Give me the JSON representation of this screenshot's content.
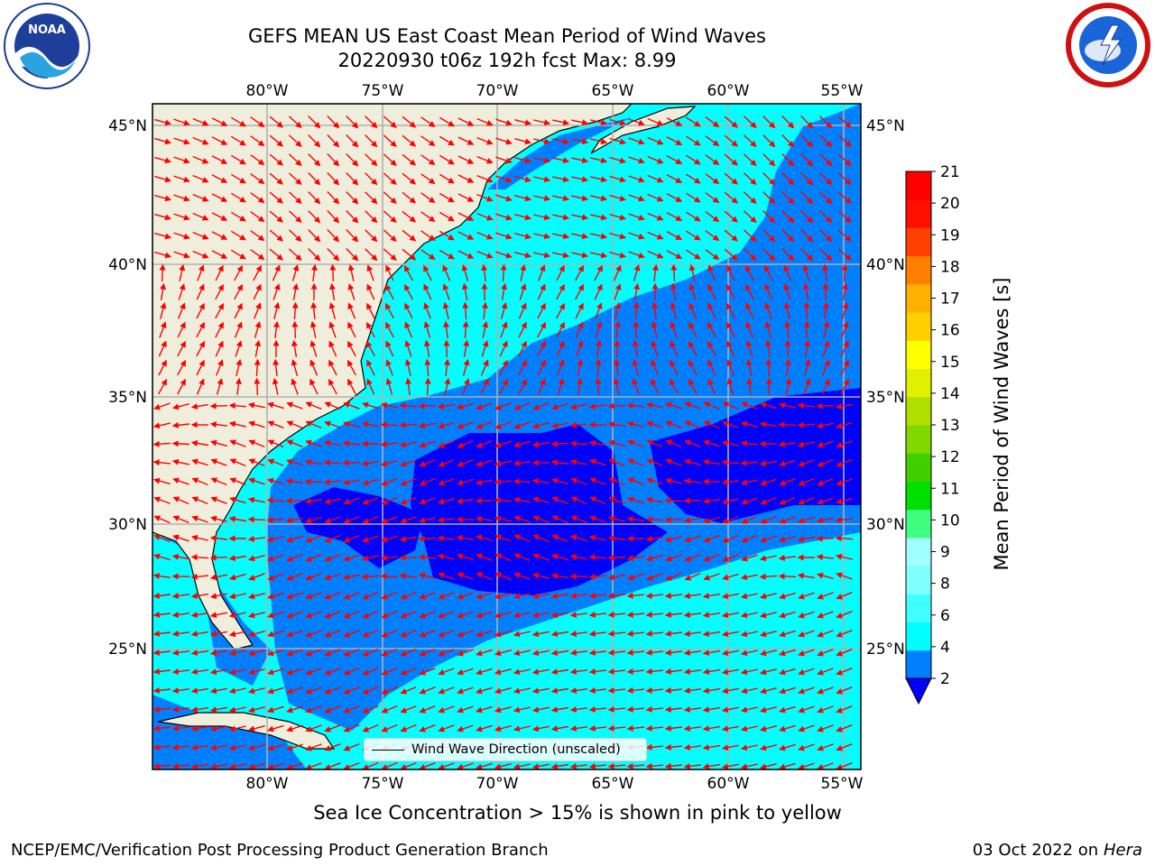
{
  "title": {
    "line1": "GEFS MEAN US East Coast Mean Period of Wind Waves",
    "line2": "20220930 t06z 192h fcst   Max: 8.99"
  },
  "logos": {
    "left": {
      "icon": "noaa-logo-icon",
      "text": "NOAA"
    },
    "right": {
      "icon": "national-weather-service-logo-icon"
    }
  },
  "map": {
    "lon_labels": [
      "80°W",
      "75°W",
      "70°W",
      "65°W",
      "60°W",
      "55°W"
    ],
    "lat_labels": [
      "45°N",
      "40°N",
      "35°N",
      "30°N",
      "25°N"
    ],
    "extent": {
      "lon": [
        -85,
        -54.3
      ],
      "lat": [
        20.5,
        45.8
      ]
    },
    "land_color": "#efeedc",
    "ocean_color": "#00ffff",
    "arrow_color": "#ff0000"
  },
  "colorbar": {
    "title": "Mean Period of Wind Waves [s]",
    "ticks": [
      "2",
      "4",
      "6",
      "8",
      "9",
      "10",
      "11",
      "12",
      "13",
      "14",
      "15",
      "16",
      "17",
      "18",
      "19",
      "20",
      "21"
    ],
    "colors": [
      "#0080ff",
      "#00ffff",
      "#40ffff",
      "#80ffff",
      "#a0ffff",
      "#40ff80",
      "#00e000",
      "#40d000",
      "#80d800",
      "#b0e000",
      "#e0f000",
      "#ffff00",
      "#ffd000",
      "#ffb000",
      "#ff8000",
      "#ff4000",
      "#ff1000",
      "#ff0000"
    ],
    "under_color": "#0000ff"
  },
  "legend": {
    "label": "Wind Wave Direction (unscaled)"
  },
  "note": "Sea Ice Concentration > 15% is shown in pink to yellow",
  "footer": {
    "left": "NCEP/EMC/Verification Post Processing Product Generation Branch",
    "right_date": "03 Oct 2022 on",
    "right_host": "Hera"
  }
}
